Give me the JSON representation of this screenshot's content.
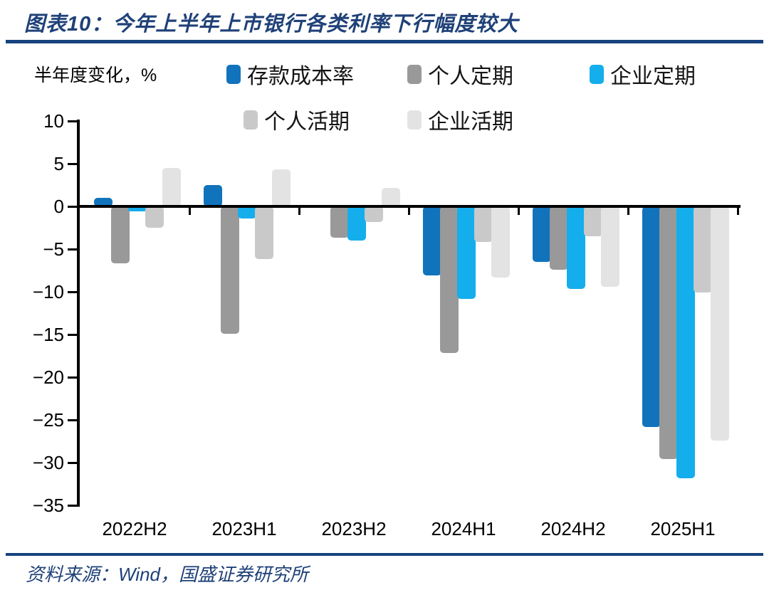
{
  "title": "图表10：今年上半年上市银行各类利率下行幅度较大",
  "source": "资料来源：Wind，国盛证券研究所",
  "colors": {
    "title_navy": "#1F4178",
    "rule_blue": "#17437F",
    "axis_black": "#000000",
    "deposit_cost_blue": "#1173BC",
    "personal_term_gray": "#999999",
    "corporate_term_cyan": "#14AEEC",
    "personal_demand_lightgray": "#C9C9C9",
    "corporate_demand_lightergray": "#E3E3E3"
  },
  "chart_data": {
    "type": "bar",
    "title": "图表10：今年上半年上市银行各类利率下行幅度较大",
    "ylabel": "半年度变化，%",
    "xlabel": "",
    "categories": [
      "2022H2",
      "2023H1",
      "2023H2",
      "2024H1",
      "2024H2",
      "2025H1"
    ],
    "series": [
      {
        "name": "存款成本率",
        "color": "#1173BC",
        "values": [
          1.0,
          2.5,
          -0.2,
          -8.1,
          -6.5,
          -25.8
        ]
      },
      {
        "name": "个人定期",
        "color": "#999999",
        "values": [
          -6.7,
          -14.9,
          -3.7,
          -17.2,
          -7.4,
          -29.6
        ]
      },
      {
        "name": "企业定期",
        "color": "#14AEEC",
        "values": [
          -0.6,
          -1.4,
          -4.0,
          -10.8,
          -9.7,
          -31.8
        ]
      },
      {
        "name": "个人活期",
        "color": "#C9C9C9",
        "values": [
          -2.5,
          -6.2,
          -1.8,
          -4.2,
          -3.5,
          -10.1
        ]
      },
      {
        "name": "企业活期",
        "color": "#E3E3E3",
        "values": [
          4.5,
          4.3,
          2.2,
          -8.3,
          -9.4,
          -27.4
        ]
      }
    ],
    "ylim": [
      -35,
      10
    ],
    "ytick_step": 5,
    "grid": false,
    "legend_position": "top"
  }
}
